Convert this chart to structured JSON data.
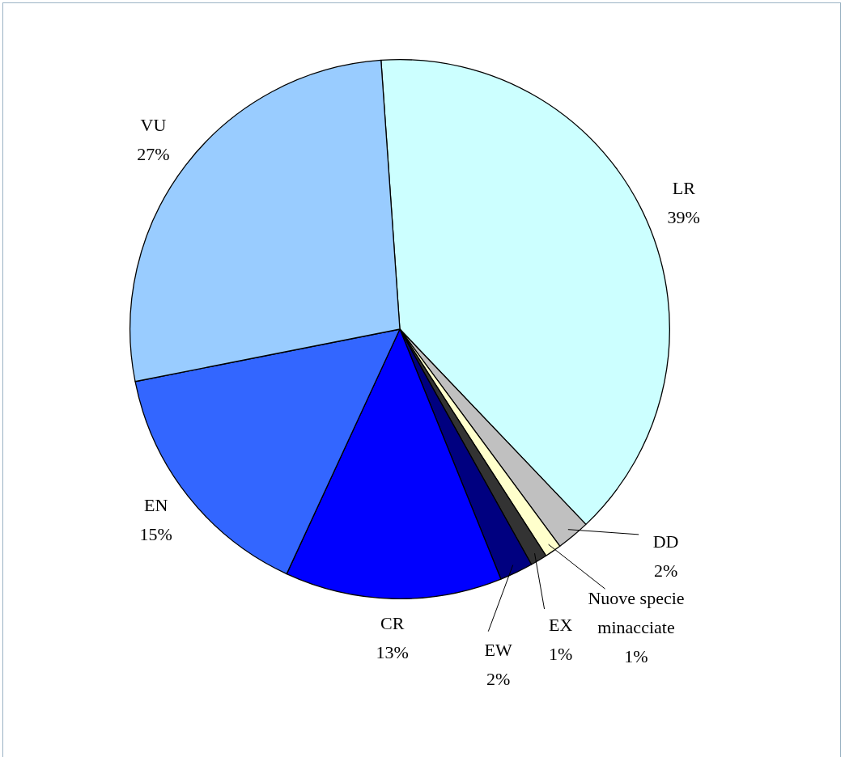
{
  "chart_data": {
    "type": "pie",
    "categories": [
      "LR",
      "DD",
      "Nuove specie minacciate",
      "EX",
      "EW",
      "CR",
      "EN",
      "VU"
    ],
    "values": [
      39,
      2,
      1,
      1,
      2,
      13,
      15,
      27
    ],
    "colors": [
      "#ccffff",
      "#c0c0c0",
      "#ffffcc",
      "#333333",
      "#000080",
      "#0000ff",
      "#3366ff",
      "#99ccff"
    ],
    "value_labels": [
      "39%",
      "2%",
      "1%",
      "1%",
      "2%",
      "13%",
      "15%",
      "27%"
    ],
    "legend": false
  }
}
